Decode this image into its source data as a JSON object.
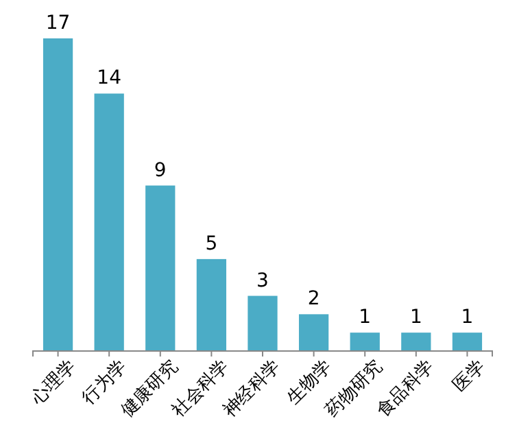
{
  "chart_data": {
    "type": "bar",
    "categories": [
      "心理学",
      "行为学",
      "健康研究",
      "社会科学",
      "神经科学",
      "生物学",
      "药物研究",
      "食品科学",
      "医学"
    ],
    "values": [
      17,
      14,
      9,
      5,
      3,
      2,
      1,
      1,
      1
    ],
    "color": "#4bacc6",
    "data_labels": true
  }
}
